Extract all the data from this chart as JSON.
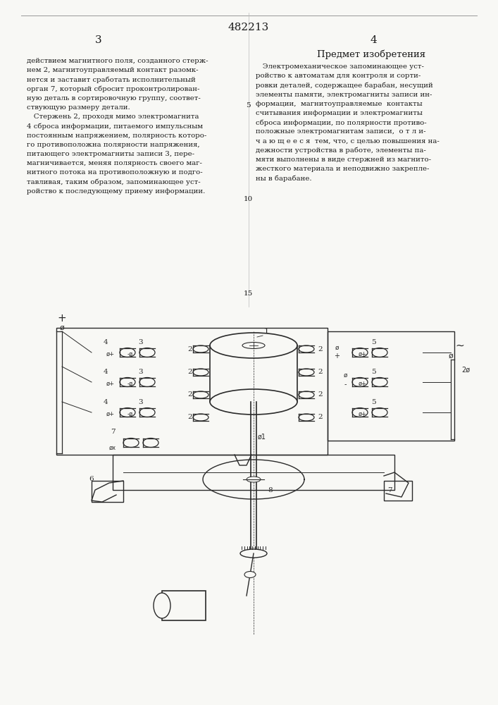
{
  "patent_number": "482213",
  "col_left_num": "3",
  "col_right_num": "4",
  "right_heading": "Предмет изобретения",
  "left_text": [
    "действием магнитного поля, созданного стерж-",
    "нем 2, магнитоуправляемый контакт разомк-",
    "нется и заставит сработать исполнительный",
    "орган 7, который сбросит проконтролирован-",
    "ную деталь в сортировочную группу, соответ-",
    "ствующую размеру детали.",
    "   Стержень 2, проходя мимо электромагнита",
    "4 сброса информации, питаемого импульсным",
    "постоянным напряжением, полярность которо-",
    "го противоположна полярности напряжения,",
    "питающего электромагниты записи 3, пере-",
    "магничивается, меняя полярность своего маг-",
    "нитного потока на противоположную и подго-",
    "тавливая, таким образом, запоминающее уст-",
    "ройство к последующему приему информации."
  ],
  "right_text": [
    "   Электромеханическое запоминающее уст-",
    "ройство к автоматам для контроля и сорти-",
    "ровки деталей, содержащее барабан, несущий",
    "элементы памяти, электромагниты записи ин-",
    "формации,  магнитоуправляемые  контакты",
    "считывания информации и электромагниты",
    "сброса информации, по полярности противо-",
    "положные электромагнитам записи,  о т л и-",
    "ч а ю щ е е с я  тем, что, с целью повышения на-",
    "дежности устройства в работе, элементы па-",
    "мяти выполнены в виде стержней из магнито-",
    "жесткого материала и неподвижно закрепле-",
    "ны в барабане."
  ],
  "line_num_5": "5",
  "line_num_10": "10",
  "line_num_15": "15",
  "bg_color": "#f8f8f5",
  "text_color": "#1a1a1a",
  "drawing_color": "#2a2a2a"
}
